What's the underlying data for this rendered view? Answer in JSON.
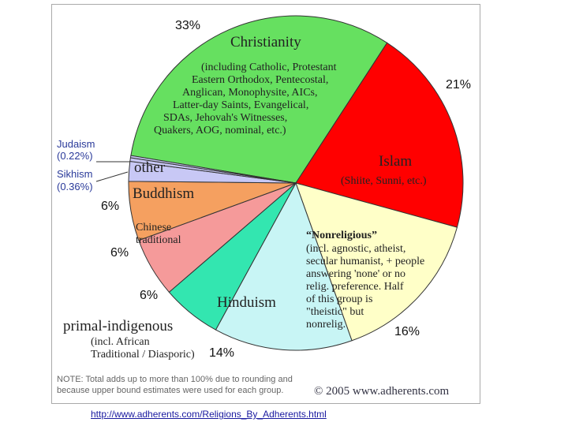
{
  "chart_data": {
    "type": "pie",
    "categories": [
      "Christianity",
      "Islam",
      "“Nonreligious”",
      "Hinduism",
      "primal-indigenous",
      "Chinese traditional",
      "Buddhism",
      "other",
      "Sikhism",
      "Judaism"
    ],
    "values": [
      33,
      21,
      16,
      14,
      6,
      6,
      6,
      2,
      0.36,
      0.22
    ],
    "value_labels": [
      "33%",
      "21%",
      "16%",
      "14%",
      "6%",
      "6%",
      "6%",
      null,
      "(0.36%)",
      "(0.22%)"
    ],
    "colors": [
      "#66e060",
      "#ff0000",
      "#ffffc8",
      "#c8f5f5",
      "#33e6b0",
      "#f59a9a",
      "#f5a060",
      "#c8c8f5",
      "#c8c8f5",
      "#c8c8f5"
    ],
    "descriptions": [
      [
        "(including Catholic, Protestant",
        "Eastern Orthodox, Pentecostal,",
        "Anglican, Monophysite, AICs,",
        "Latter-day Saints, Evangelical,",
        "SDAs, Jehovah's Witnesses,",
        "Quakers, AOG, nominal, etc.)"
      ],
      [
        "(Shiite, Sunni, etc.)"
      ],
      [
        "(incl. agnostic, atheist,",
        "secular humanist, + people",
        "answering 'none' or no",
        "relig. preference. Half",
        "of this group is",
        "\"theistic\" but",
        "nonrelig."
      ],
      null,
      [
        "(incl. African",
        "Traditional / Diasporic)"
      ],
      null,
      null,
      null,
      null,
      null
    ],
    "note": "NOTE: Total adds up to more than 100% due to rounding and because upper bound estimates were used for each group.",
    "copyright": "© 2005 www.adherents.com",
    "url": "http://www.adherents.com/Religions_By_Adherents.html"
  }
}
